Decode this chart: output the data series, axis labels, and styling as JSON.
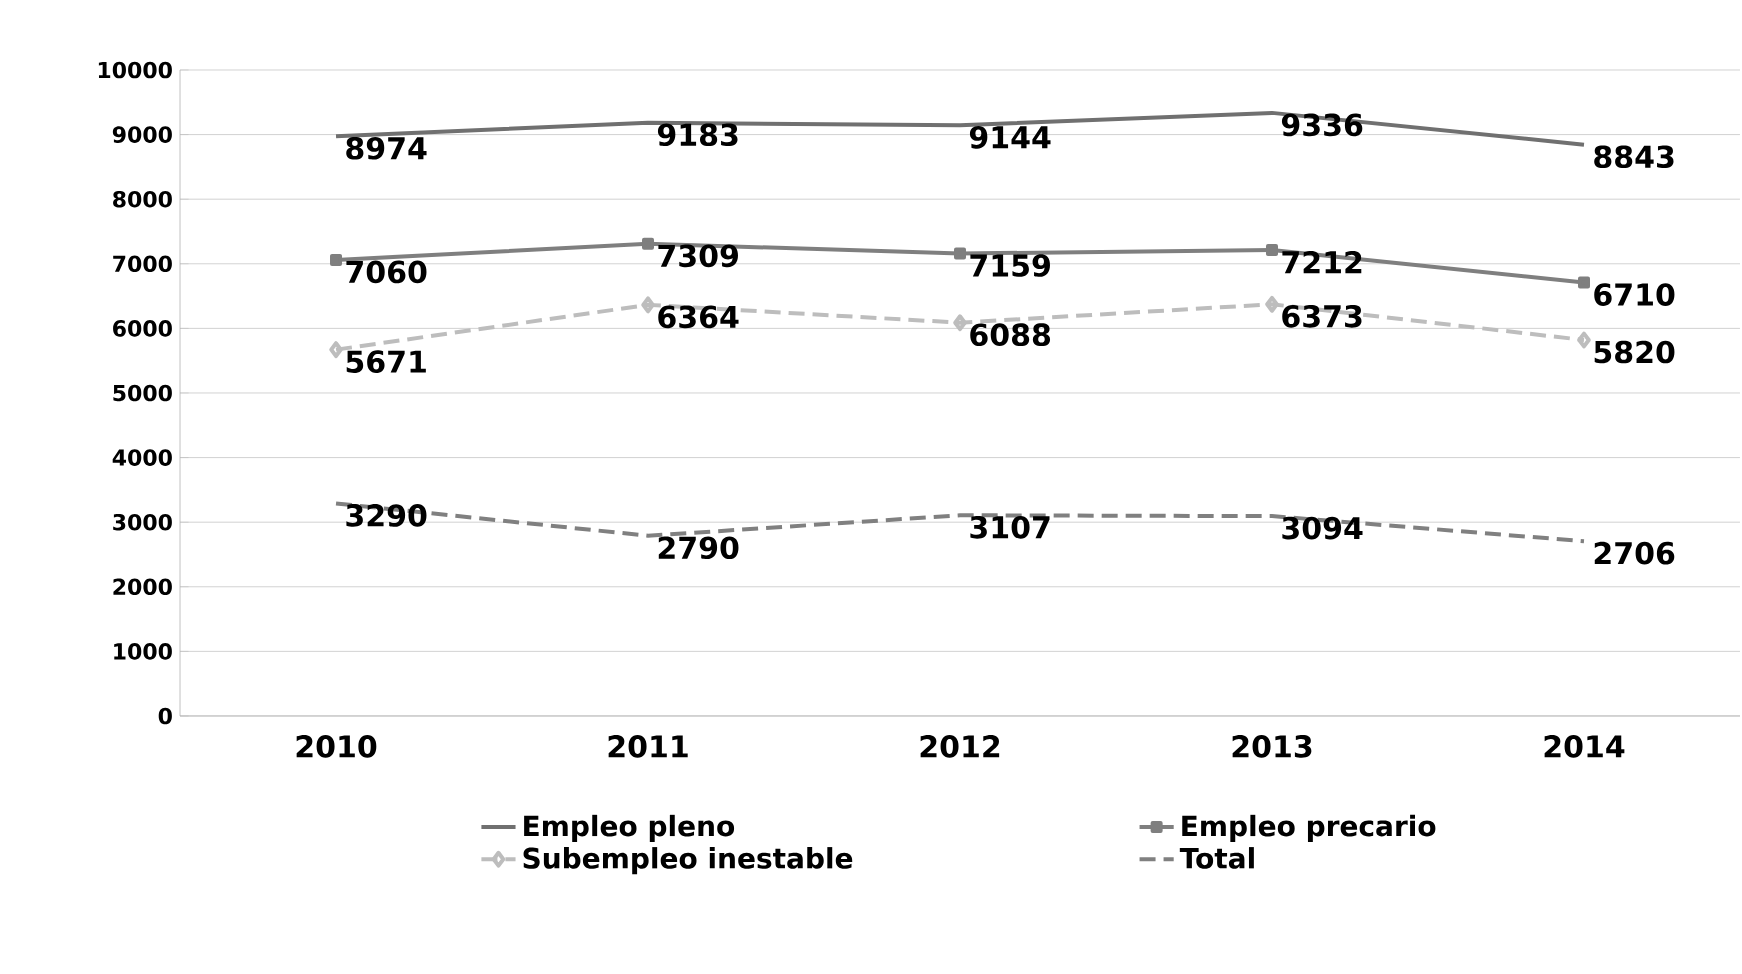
{
  "chart_data": {
    "type": "line",
    "categories": [
      "2010",
      "2011",
      "2012",
      "2013",
      "2014"
    ],
    "series": [
      {
        "name": "Empleo pleno",
        "color": "#707070",
        "values": [
          8974,
          9183,
          9144,
          9336,
          8843
        ],
        "marker": "none",
        "line_style": "solid"
      },
      {
        "name": "Empleo precario",
        "color": "#7f7f7f",
        "values": [
          7060,
          7309,
          7159,
          7212,
          6710
        ],
        "marker": "square",
        "line_style": "solid"
      },
      {
        "name": "Subempleo inestable",
        "color": "#bdbdbd",
        "values": [
          5671,
          6364,
          6088,
          6373,
          5820
        ],
        "marker": "diamond",
        "line_style": "dashed"
      },
      {
        "name": "Total",
        "color": "#808080",
        "values": [
          3290,
          2790,
          3107,
          3094,
          2706
        ],
        "marker": "none",
        "line_style": "dashed"
      }
    ],
    "ylim": [
      0,
      10000
    ],
    "yticks": [
      0,
      1000,
      2000,
      3000,
      4000,
      5000,
      6000,
      7000,
      8000,
      9000,
      10000
    ],
    "grid": "y",
    "legend": "bottom",
    "data_labels": true
  }
}
